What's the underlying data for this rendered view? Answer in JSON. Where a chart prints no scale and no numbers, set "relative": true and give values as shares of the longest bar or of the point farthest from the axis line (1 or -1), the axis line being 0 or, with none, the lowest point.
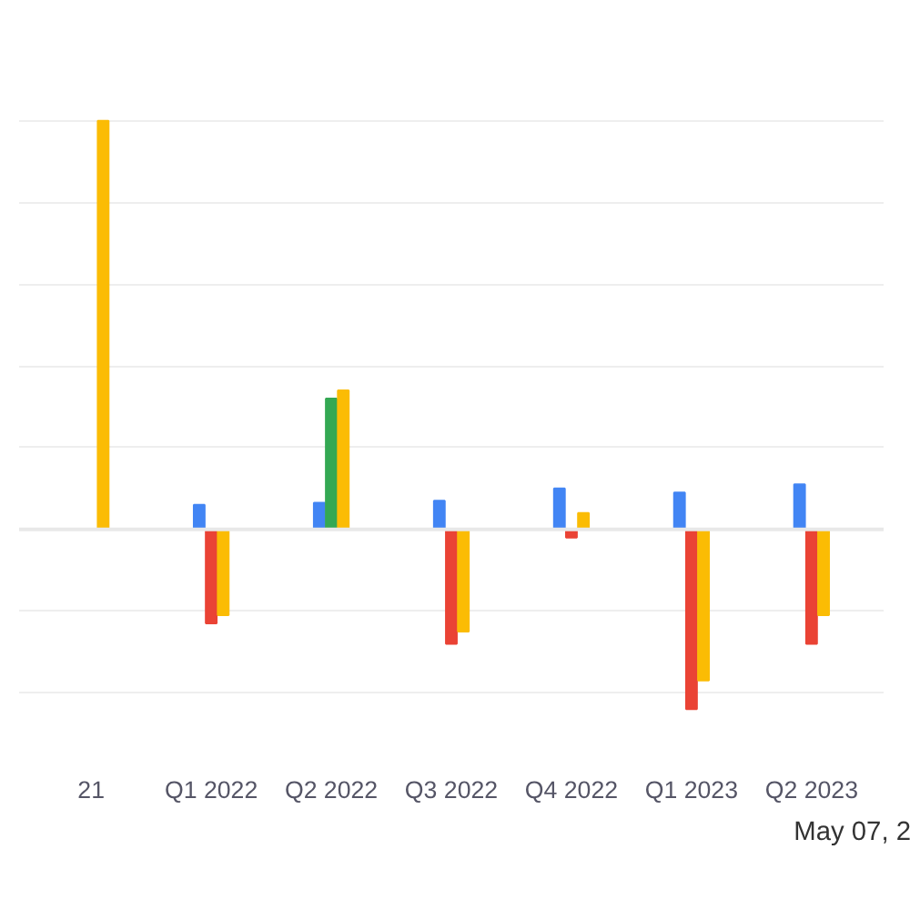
{
  "chart_data": {
    "type": "bar",
    "relative": true,
    "grid": "y",
    "categories": [
      "21",
      "Q1 2022",
      "Q2 2022",
      "Q3 2022",
      "Q4 2022",
      "Q1 2023",
      "Q2 2023"
    ],
    "series": [
      {
        "color": "#4285f4",
        "values": [
          null,
          0.06,
          0.065,
          0.07,
          0.1,
          0.09,
          0.11
        ]
      },
      {
        "color": "#ea4335",
        "colors": [
          null,
          null,
          "#34a853",
          null,
          null,
          null,
          null
        ],
        "values": [
          null,
          -0.23,
          0.32,
          -0.28,
          -0.02,
          -0.44,
          -0.28
        ]
      },
      {
        "color": "#fbbc04",
        "values": [
          1,
          -0.21,
          0.34,
          -0.25,
          0.04,
          -0.37,
          -0.21
        ]
      }
    ],
    "annotations": [
      "May 07, 2"
    ]
  }
}
